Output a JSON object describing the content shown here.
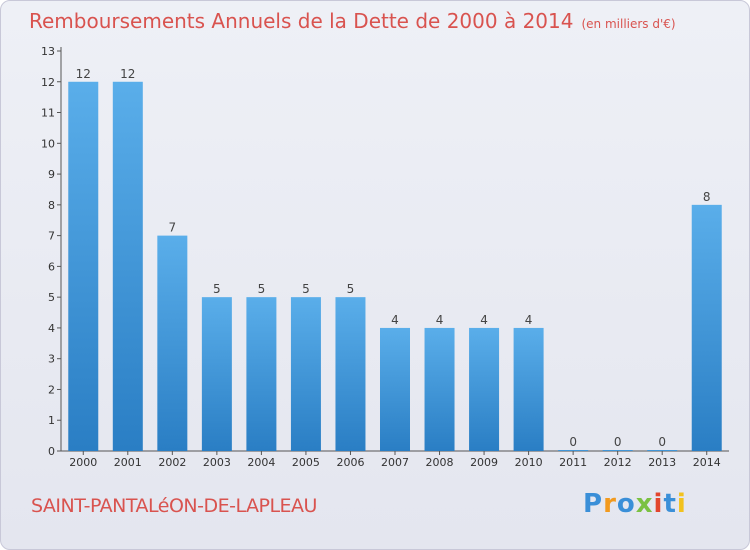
{
  "header": {
    "title": "Remboursements Annuels de la Dette de 2000 à 2014",
    "subtitle": "(en milliers d'€)"
  },
  "footer": {
    "commune": "SAINT-PANTALéON-DE-LAPLEAU",
    "logo_text": "Proxiti"
  },
  "colors": {
    "bar_light": "#5aaeea",
    "bar_dark": "#2a7ec4",
    "title": "#d9534f"
  },
  "chart_data": {
    "type": "bar",
    "title": "Remboursements Annuels de la Dette de 2000 à 2014",
    "subtitle": "(en milliers d'€)",
    "xlabel": "",
    "ylabel": "",
    "categories": [
      "2000",
      "2001",
      "2002",
      "2003",
      "2004",
      "2005",
      "2006",
      "2007",
      "2008",
      "2009",
      "2010",
      "2011",
      "2012",
      "2013",
      "2014"
    ],
    "values": [
      12,
      12,
      7,
      5,
      5,
      5,
      5,
      4,
      4,
      4,
      4,
      0,
      0,
      0,
      8
    ],
    "ylim": [
      0,
      13
    ],
    "yticks": [
      0,
      1,
      2,
      3,
      4,
      5,
      6,
      7,
      8,
      9,
      10,
      11,
      12,
      13
    ],
    "grid": false,
    "legend": "none"
  }
}
